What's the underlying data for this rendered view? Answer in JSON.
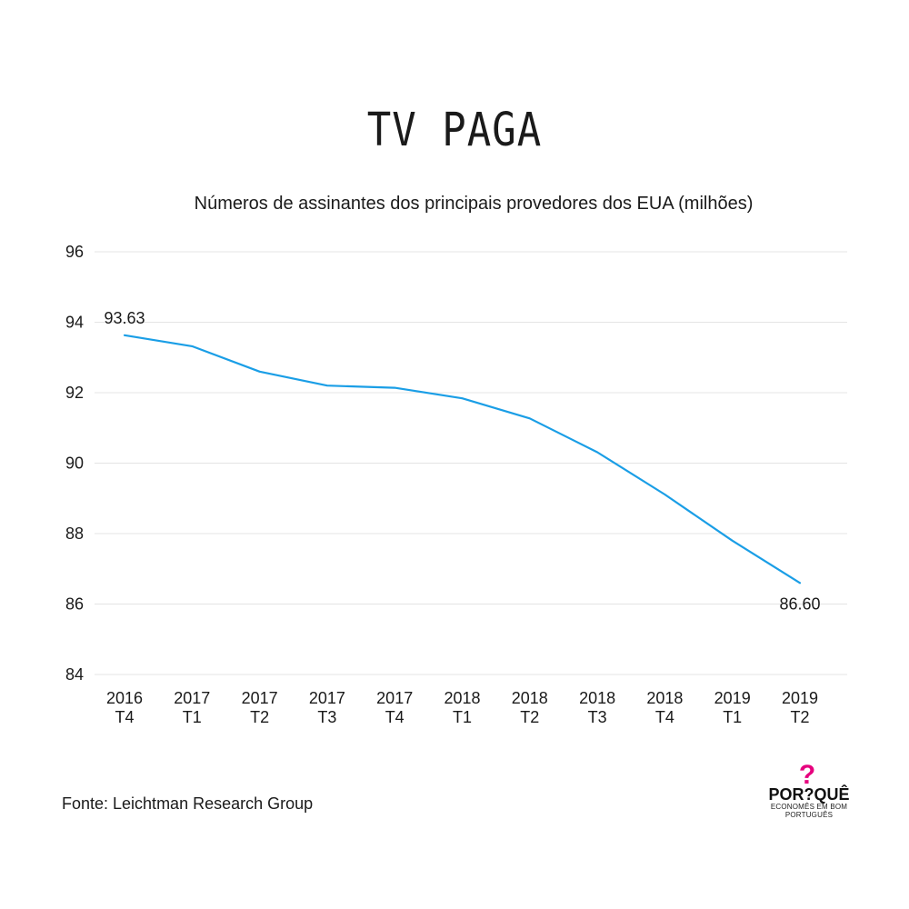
{
  "header": {
    "title": "TV PAGA",
    "subtitle": "Números de assinantes dos principais provedores dos EUA (milhões)"
  },
  "chart_data": {
    "type": "line",
    "categories": [
      [
        "2016",
        "T4"
      ],
      [
        "2017",
        "T1"
      ],
      [
        "2017",
        "T2"
      ],
      [
        "2017",
        "T3"
      ],
      [
        "2017",
        "T4"
      ],
      [
        "2018",
        "T1"
      ],
      [
        "2018",
        "T2"
      ],
      [
        "2018",
        "T3"
      ],
      [
        "2018",
        "T4"
      ],
      [
        "2019",
        "T1"
      ],
      [
        "2019",
        "T2"
      ]
    ],
    "series": [
      {
        "values": [
          93.63,
          93.32,
          92.6,
          92.2,
          92.14,
          91.84,
          91.27,
          90.31,
          89.11,
          87.8,
          86.6
        ],
        "color": "#1a9ee6"
      }
    ],
    "data_labels": [
      {
        "index": 0,
        "text": "93.63",
        "placement": "above"
      },
      {
        "index": 10,
        "text": "86.60",
        "placement": "below"
      }
    ],
    "ylim": [
      84,
      96
    ],
    "yticks": [
      84,
      86,
      88,
      90,
      92,
      94,
      96
    ],
    "grid": true,
    "xlabel": "",
    "ylabel": ""
  },
  "footer": {
    "source": "Fonte: Leichtman Research Group",
    "logo_text": "POR?QUÊ",
    "logo_tagline": "ECONOMÊS EM BOM PORTUGUÊS",
    "logo_color": "#e6007e"
  }
}
